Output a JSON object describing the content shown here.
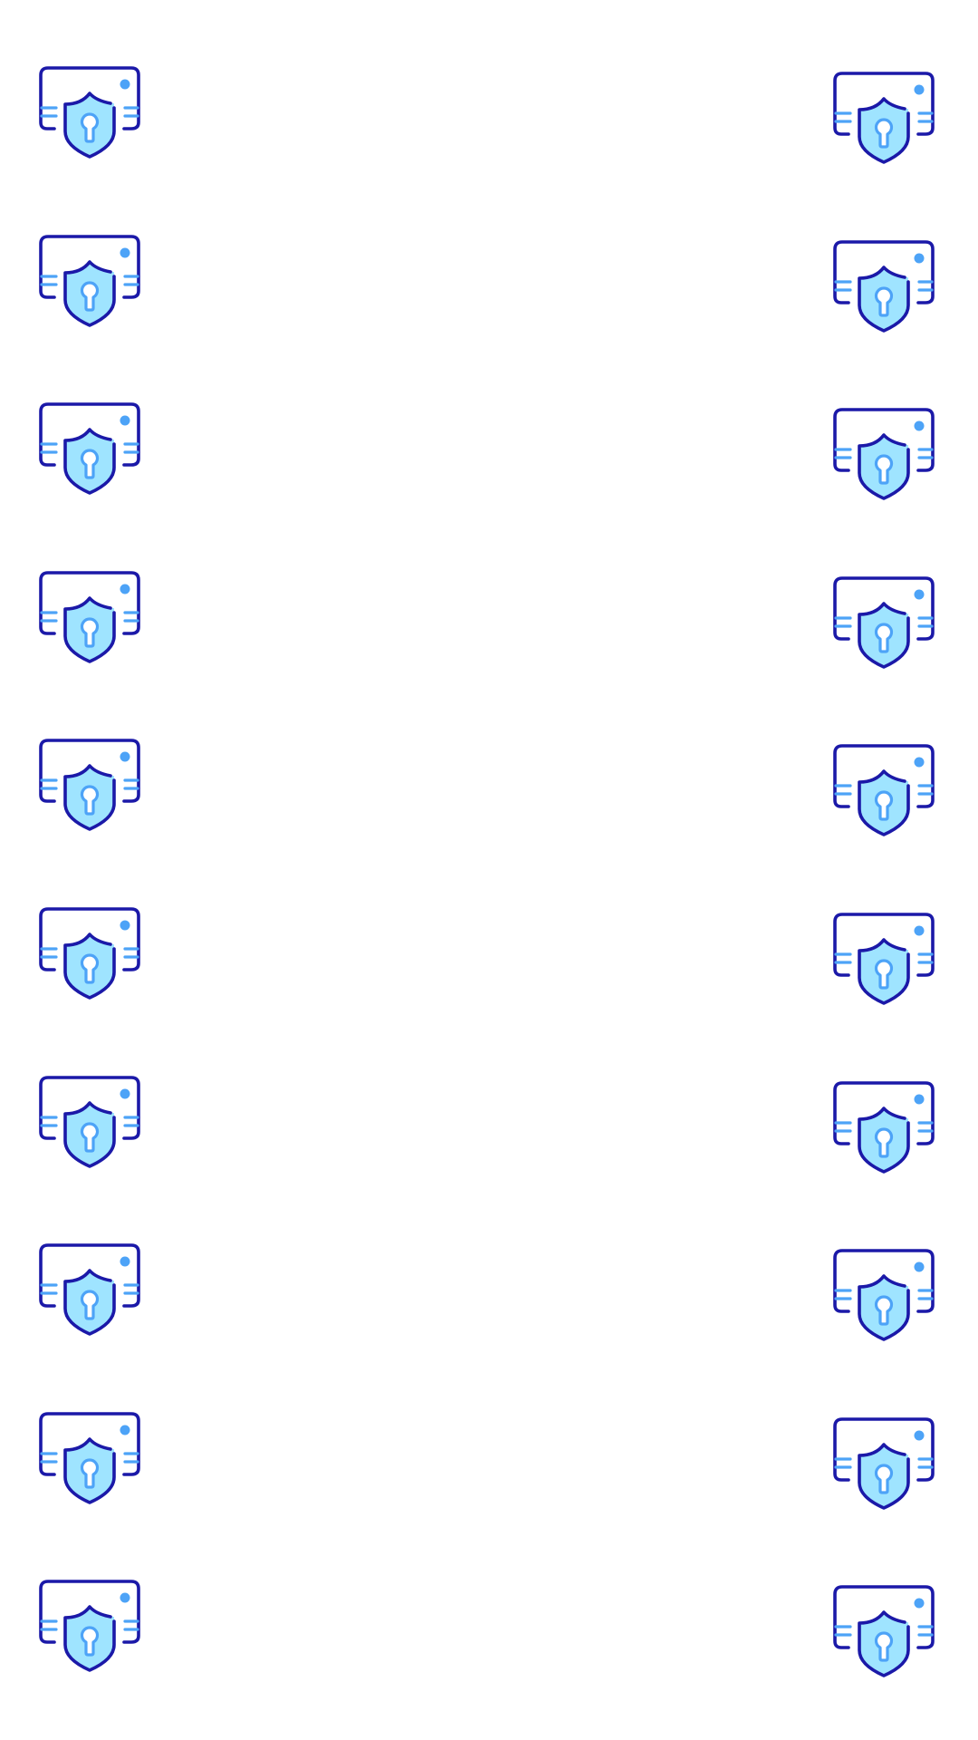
{
  "icon": {
    "name": "card-shield-keyhole-icon",
    "colors": {
      "outline": "#1b19a8",
      "accent": "#4da3f7",
      "shield_fill": "#9fe4ff",
      "background": "#ffffff"
    }
  },
  "columns": [
    {
      "side": "left",
      "count": 10
    },
    {
      "side": "right",
      "count": 10
    }
  ]
}
